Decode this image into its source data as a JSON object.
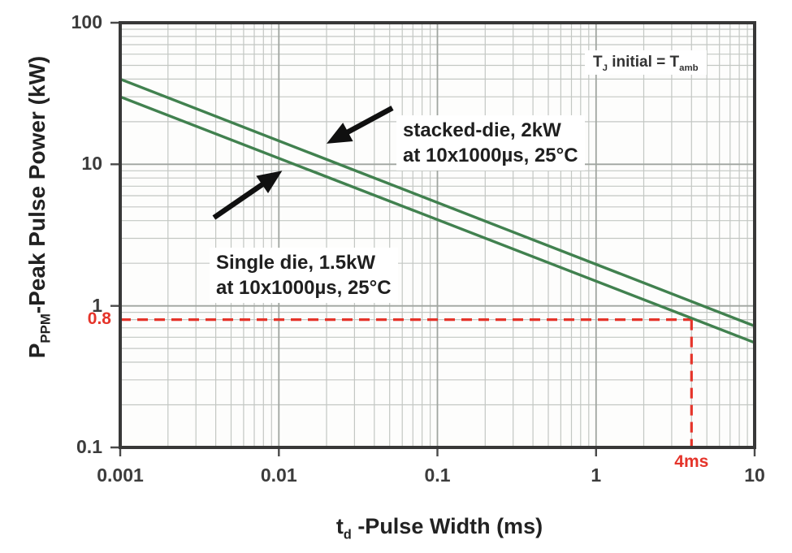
{
  "chart_data": {
    "type": "line",
    "title": "",
    "xscale": "log",
    "yscale": "log",
    "xlim": [
      0.001,
      10
    ],
    "ylim": [
      0.1,
      100
    ],
    "grid": true,
    "x_tick_labels": [
      "0.001",
      "0.01",
      "0.1",
      "1",
      "10"
    ],
    "x_tick_values": [
      0.001,
      0.01,
      0.1,
      1,
      10
    ],
    "y_tick_labels": [
      "100",
      "10",
      "1",
      "0.1"
    ],
    "y_tick_values": [
      100,
      10,
      1,
      0.1
    ],
    "xlabel": {
      "main": "t",
      "sub": "d",
      "rest": " -Pulse Width (ms)"
    },
    "ylabel": {
      "main": "P",
      "sub": "PPM",
      "rest": "-Peak Pulse Power (kW)"
    },
    "series": [
      {
        "name": "stacked-die, 2kW at 10x1000µs, 25°C",
        "color": "#41814f",
        "points": [
          {
            "x": 0.001,
            "y": 40
          },
          {
            "x": 10,
            "y": 0.72
          }
        ]
      },
      {
        "name": "Single die, 1.5kW at 10x1000µs, 25°C",
        "color": "#41814f",
        "points": [
          {
            "x": 0.001,
            "y": 30
          },
          {
            "x": 10,
            "y": 0.55
          }
        ]
      }
    ],
    "marker": {
      "x": 4,
      "y": 0.8,
      "x_label": "4ms",
      "y_label": "0.8",
      "color": "#e5342a"
    },
    "arrows": [
      {
        "target": "stacked-die-line",
        "from": {
          "x": 0.052,
          "y": 25
        },
        "to": {
          "x": 0.02,
          "y": 14
        }
      },
      {
        "target": "single-die-line",
        "from": {
          "x": 0.0039,
          "y": 4.2
        },
        "to": {
          "x": 0.0105,
          "y": 9
        }
      }
    ],
    "annotations": {
      "condition": {
        "t1": "T",
        "sub1": "J",
        "t2": " initial = T",
        "sub2": "amb"
      },
      "stacked": {
        "line1": "stacked-die, 2kW",
        "line2": "at 10x1000µs, 25°C"
      },
      "single": {
        "line1": "Single die, 1.5kW",
        "line2": "at 10x1000µs, 25°C"
      }
    },
    "colors": {
      "line_green": "#41814f",
      "marker_red": "#e5342a",
      "grid_minor": "#c3c7c3",
      "grid_major": "#a0a5a0",
      "axis": "#383838",
      "text": "#2e2e2e"
    }
  }
}
